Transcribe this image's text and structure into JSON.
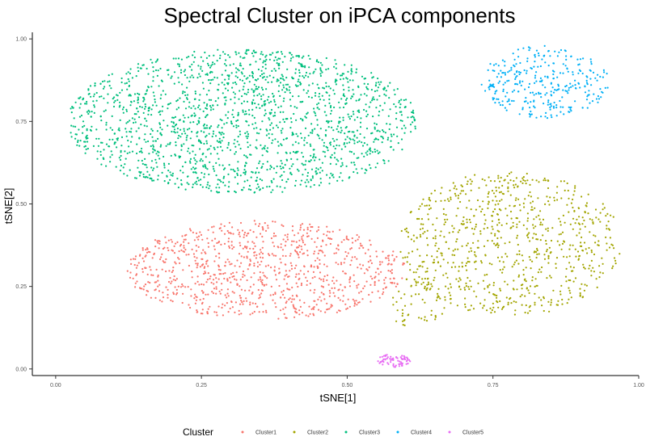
{
  "chart_data": {
    "type": "scatter",
    "title": "Spectral Cluster on iPCA components",
    "xlabel": "tSNE[1]",
    "ylabel": "tSNE[2]",
    "xlim": [
      -0.04,
      1.0
    ],
    "ylim": [
      -0.02,
      1.02
    ],
    "x_ticks": [
      "0.00",
      "0.25",
      "0.50",
      "0.75",
      "1.00"
    ],
    "y_ticks": [
      "0.00",
      "0.25",
      "0.50",
      "0.75",
      "1.00"
    ],
    "grid": false,
    "legend": {
      "title": "Cluster",
      "position": "bottom"
    },
    "series": [
      {
        "name": "Cluster1",
        "color": "#F8766D",
        "regions": [
          {
            "cx": 0.36,
            "cy": 0.3,
            "rx": 0.24,
            "ry": 0.15,
            "n": 950
          }
        ]
      },
      {
        "name": "Cluster2",
        "color": "#A3A500",
        "regions": [
          {
            "cx": 0.78,
            "cy": 0.38,
            "rx": 0.19,
            "ry": 0.22,
            "n": 800
          },
          {
            "cx": 0.62,
            "cy": 0.2,
            "rx": 0.05,
            "ry": 0.08,
            "n": 60
          }
        ]
      },
      {
        "name": "Cluster3",
        "color": "#00BF7D",
        "regions": [
          {
            "cx": 0.32,
            "cy": 0.75,
            "rx": 0.3,
            "ry": 0.22,
            "n": 1800
          }
        ]
      },
      {
        "name": "Cluster4",
        "color": "#00B0F6",
        "regions": [
          {
            "cx": 0.84,
            "cy": 0.87,
            "rx": 0.11,
            "ry": 0.11,
            "n": 320
          }
        ]
      },
      {
        "name": "Cluster5",
        "color": "#E76BF3",
        "regions": [
          {
            "cx": 0.58,
            "cy": 0.025,
            "rx": 0.028,
            "ry": 0.02,
            "n": 70
          }
        ]
      }
    ]
  }
}
